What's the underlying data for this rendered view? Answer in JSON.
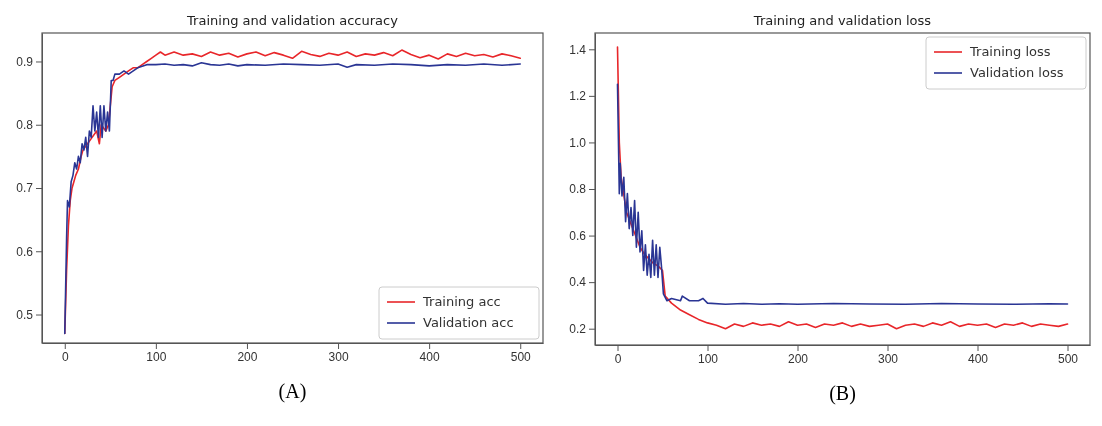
{
  "chart_data": [
    {
      "type": "line",
      "title": "Training and validation accuracy",
      "xlabel": "(A)",
      "xlim": [
        -25,
        525
      ],
      "xticks": [
        0,
        100,
        200,
        300,
        400,
        500
      ],
      "ylim": [
        0.455,
        0.945
      ],
      "yticks": [
        {
          "value": 0.5,
          "label": "0.5"
        },
        {
          "value": 0.6,
          "label": "0.6"
        },
        {
          "value": 0.7,
          "label": "0.7"
        },
        {
          "value": 0.8,
          "label": "0.8"
        },
        {
          "value": 0.9,
          "label": "0.9"
        }
      ],
      "legend": "bottom right",
      "grid": false,
      "series": [
        {
          "name": "Training acc",
          "color": "#e8262a",
          "x": [
            0,
            2,
            4,
            6,
            8,
            10,
            12,
            15,
            18,
            20,
            25,
            30,
            35,
            38,
            40,
            45,
            48,
            52,
            55,
            60,
            65,
            70,
            75,
            80,
            85,
            90,
            95,
            100,
            105,
            110,
            120,
            130,
            140,
            150,
            160,
            170,
            180,
            190,
            200,
            210,
            220,
            230,
            240,
            250,
            260,
            270,
            280,
            290,
            300,
            310,
            320,
            330,
            340,
            350,
            360,
            370,
            380,
            390,
            400,
            410,
            420,
            430,
            440,
            450,
            460,
            470,
            480,
            490,
            500
          ],
          "values": [
            0.47,
            0.57,
            0.64,
            0.68,
            0.7,
            0.71,
            0.72,
            0.73,
            0.75,
            0.76,
            0.77,
            0.78,
            0.79,
            0.77,
            0.8,
            0.79,
            0.8,
            0.86,
            0.87,
            0.875,
            0.88,
            0.885,
            0.89,
            0.89,
            0.895,
            0.9,
            0.905,
            0.91,
            0.915,
            0.91,
            0.915,
            0.91,
            0.912,
            0.908,
            0.915,
            0.91,
            0.913,
            0.907,
            0.912,
            0.915,
            0.909,
            0.914,
            0.91,
            0.905,
            0.916,
            0.911,
            0.908,
            0.913,
            0.91,
            0.915,
            0.908,
            0.912,
            0.91,
            0.914,
            0.909,
            0.918,
            0.911,
            0.906,
            0.91,
            0.904,
            0.912,
            0.908,
            0.913,
            0.909,
            0.911,
            0.907,
            0.912,
            0.909,
            0.905
          ]
        },
        {
          "name": "Validation acc",
          "color": "#2a3594",
          "x": [
            0,
            2,
            3,
            5,
            7,
            9,
            11,
            13,
            15,
            17,
            19,
            21,
            23,
            25,
            27,
            29,
            31,
            33,
            35,
            37,
            39,
            41,
            43,
            45,
            47,
            49,
            51,
            53,
            55,
            60,
            65,
            70,
            80,
            90,
            100,
            110,
            120,
            130,
            140,
            150,
            160,
            170,
            180,
            190,
            200,
            220,
            240,
            260,
            280,
            300,
            310,
            320,
            340,
            360,
            380,
            400,
            420,
            440,
            460,
            480,
            500
          ],
          "values": [
            0.47,
            0.62,
            0.68,
            0.67,
            0.71,
            0.72,
            0.74,
            0.73,
            0.75,
            0.74,
            0.77,
            0.76,
            0.78,
            0.75,
            0.79,
            0.78,
            0.83,
            0.79,
            0.82,
            0.78,
            0.83,
            0.78,
            0.83,
            0.79,
            0.82,
            0.79,
            0.87,
            0.87,
            0.88,
            0.88,
            0.885,
            0.88,
            0.89,
            0.895,
            0.895,
            0.896,
            0.894,
            0.895,
            0.893,
            0.898,
            0.895,
            0.894,
            0.896,
            0.893,
            0.895,
            0.894,
            0.896,
            0.895,
            0.894,
            0.896,
            0.891,
            0.895,
            0.894,
            0.896,
            0.895,
            0.893,
            0.895,
            0.894,
            0.896,
            0.894,
            0.896
          ]
        }
      ]
    },
    {
      "type": "line",
      "title": "Training and validation loss",
      "xlabel": "(B)",
      "xlim": [
        -25,
        525
      ],
      "xticks": [
        0,
        100,
        200,
        300,
        400,
        500
      ],
      "ylim": [
        0.13,
        1.47
      ],
      "yticks": [
        {
          "value": 0.2,
          "label": "0.2"
        },
        {
          "value": 0.4,
          "label": "0.4"
        },
        {
          "value": 0.6,
          "label": "0.6"
        },
        {
          "value": 0.8,
          "label": "0.8"
        },
        {
          "value": 1.0,
          "label": "1.0"
        },
        {
          "value": 1.2,
          "label": "1.2"
        },
        {
          "value": 1.4,
          "label": "1.4"
        }
      ],
      "legend": "top right",
      "grid": false,
      "series": [
        {
          "name": "Training loss",
          "color": "#e8262a",
          "x": [
            0,
            2,
            4,
            6,
            8,
            10,
            15,
            20,
            25,
            30,
            35,
            40,
            45,
            50,
            53,
            60,
            70,
            80,
            90,
            100,
            110,
            120,
            130,
            140,
            150,
            160,
            170,
            180,
            190,
            200,
            210,
            220,
            230,
            240,
            250,
            260,
            270,
            280,
            290,
            300,
            310,
            320,
            330,
            340,
            350,
            360,
            370,
            380,
            390,
            400,
            410,
            420,
            430,
            440,
            450,
            460,
            470,
            480,
            490,
            500
          ],
          "values": [
            1.41,
            1.0,
            0.85,
            0.8,
            0.75,
            0.7,
            0.65,
            0.6,
            0.55,
            0.52,
            0.5,
            0.48,
            0.47,
            0.45,
            0.34,
            0.31,
            0.28,
            0.26,
            0.24,
            0.225,
            0.215,
            0.2,
            0.22,
            0.21,
            0.225,
            0.215,
            0.22,
            0.21,
            0.23,
            0.215,
            0.22,
            0.205,
            0.22,
            0.215,
            0.225,
            0.21,
            0.22,
            0.21,
            0.215,
            0.22,
            0.2,
            0.215,
            0.22,
            0.21,
            0.225,
            0.215,
            0.23,
            0.21,
            0.22,
            0.215,
            0.22,
            0.205,
            0.22,
            0.215,
            0.225,
            0.21,
            0.22,
            0.215,
            0.21,
            0.22
          ]
        },
        {
          "name": "Validation loss",
          "color": "#2a3594",
          "x": [
            0,
            2,
            3,
            5,
            7,
            9,
            11,
            13,
            15,
            17,
            19,
            21,
            23,
            25,
            27,
            29,
            31,
            33,
            35,
            37,
            39,
            41,
            43,
            45,
            47,
            49,
            51,
            55,
            60,
            70,
            72,
            80,
            90,
            95,
            100,
            120,
            140,
            160,
            180,
            200,
            240,
            280,
            320,
            360,
            400,
            440,
            480,
            500
          ],
          "values": [
            1.25,
            0.78,
            0.91,
            0.77,
            0.85,
            0.66,
            0.78,
            0.63,
            0.72,
            0.6,
            0.75,
            0.55,
            0.7,
            0.53,
            0.62,
            0.45,
            0.56,
            0.43,
            0.52,
            0.42,
            0.58,
            0.43,
            0.56,
            0.42,
            0.55,
            0.46,
            0.35,
            0.32,
            0.33,
            0.32,
            0.34,
            0.32,
            0.32,
            0.33,
            0.31,
            0.305,
            0.308,
            0.305,
            0.307,
            0.305,
            0.308,
            0.306,
            0.305,
            0.308,
            0.306,
            0.305,
            0.307,
            0.306
          ]
        }
      ]
    }
  ]
}
